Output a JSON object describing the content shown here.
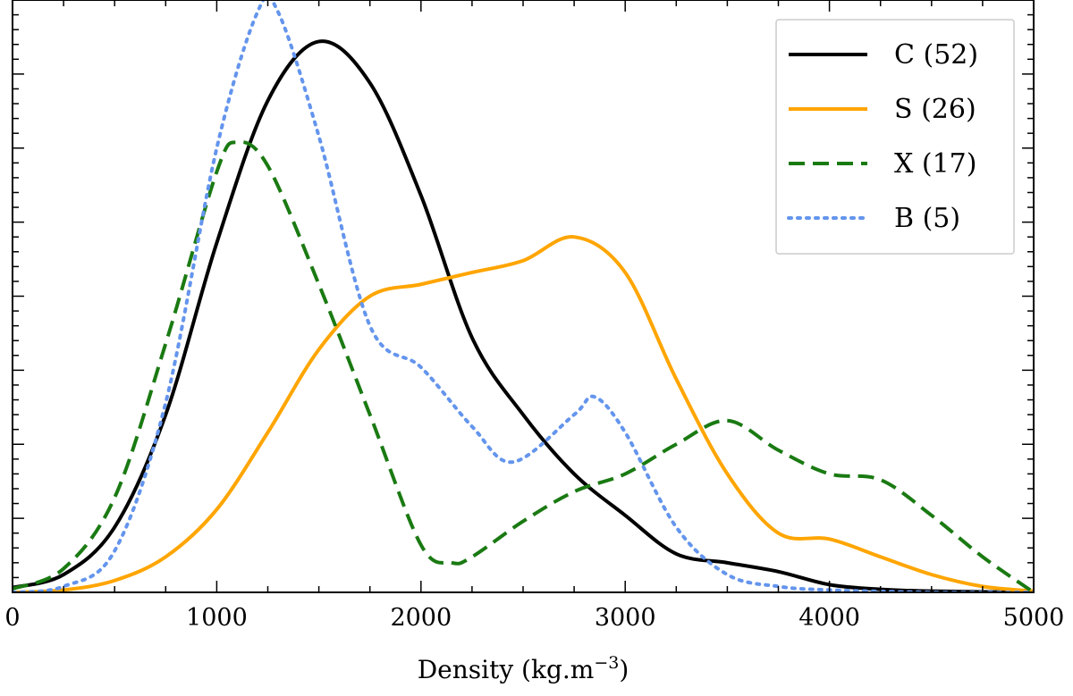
{
  "chart_data": {
    "type": "line",
    "title": "",
    "xlabel": "Density (kg.m",
    "xlabel_sup": "−3",
    "xlabel_end": ")",
    "ylabel": "",
    "xlim": [
      0,
      5000
    ],
    "ylim": [
      0,
      1
    ],
    "grid": false,
    "legend_position": "top-right",
    "x_ticks": [
      0,
      1000,
      2000,
      3000,
      4000,
      5000
    ],
    "x_tick_labels": [
      "0",
      "1000",
      "2000",
      "3000",
      "4000",
      "5000"
    ],
    "series": [
      {
        "name": "C (52)",
        "color": "#000000",
        "style": "solid",
        "points": [
          [
            0,
            0.008
          ],
          [
            250,
            0.03
          ],
          [
            500,
            0.11
          ],
          [
            750,
            0.3
          ],
          [
            1000,
            0.59
          ],
          [
            1250,
            0.83
          ],
          [
            1500,
            0.93
          ],
          [
            1750,
            0.86
          ],
          [
            2000,
            0.67
          ],
          [
            2250,
            0.43
          ],
          [
            2500,
            0.3
          ],
          [
            2750,
            0.2
          ],
          [
            3000,
            0.13
          ],
          [
            3250,
            0.065
          ],
          [
            3500,
            0.05
          ],
          [
            3750,
            0.035
          ],
          [
            4000,
            0.013
          ],
          [
            4250,
            0.005
          ],
          [
            4500,
            0.002
          ],
          [
            5000,
            0.0
          ]
        ]
      },
      {
        "name": "S (26)",
        "color": "#FFA500",
        "style": "solid",
        "points": [
          [
            0,
            0.0
          ],
          [
            250,
            0.004
          ],
          [
            500,
            0.02
          ],
          [
            750,
            0.06
          ],
          [
            1000,
            0.14
          ],
          [
            1250,
            0.27
          ],
          [
            1500,
            0.41
          ],
          [
            1750,
            0.5
          ],
          [
            2000,
            0.52
          ],
          [
            2250,
            0.54
          ],
          [
            2500,
            0.56
          ],
          [
            2750,
            0.6
          ],
          [
            3000,
            0.54
          ],
          [
            3250,
            0.36
          ],
          [
            3500,
            0.2
          ],
          [
            3750,
            0.1
          ],
          [
            4000,
            0.09
          ],
          [
            4250,
            0.06
          ],
          [
            4500,
            0.03
          ],
          [
            4750,
            0.01
          ],
          [
            5000,
            0.002
          ]
        ]
      },
      {
        "name": "X (17)",
        "color": "#1A7A12",
        "style": "dashed",
        "points": [
          [
            0,
            0.006
          ],
          [
            250,
            0.04
          ],
          [
            500,
            0.16
          ],
          [
            750,
            0.42
          ],
          [
            1000,
            0.71
          ],
          [
            1100,
            0.76
          ],
          [
            1250,
            0.72
          ],
          [
            1500,
            0.52
          ],
          [
            1750,
            0.3
          ],
          [
            2000,
            0.08
          ],
          [
            2150,
            0.05
          ],
          [
            2250,
            0.06
          ],
          [
            2500,
            0.12
          ],
          [
            2750,
            0.17
          ],
          [
            3000,
            0.2
          ],
          [
            3250,
            0.25
          ],
          [
            3500,
            0.29
          ],
          [
            3750,
            0.24
          ],
          [
            4000,
            0.2
          ],
          [
            4250,
            0.19
          ],
          [
            4500,
            0.13
          ],
          [
            4750,
            0.06
          ],
          [
            5000,
            0.0
          ]
        ]
      },
      {
        "name": "B (5)",
        "color": "#6495ED",
        "style": "dotted",
        "points": [
          [
            0,
            0.0
          ],
          [
            250,
            0.01
          ],
          [
            500,
            0.07
          ],
          [
            750,
            0.32
          ],
          [
            1000,
            0.75
          ],
          [
            1200,
            0.98
          ],
          [
            1300,
            0.98
          ],
          [
            1500,
            0.77
          ],
          [
            1750,
            0.45
          ],
          [
            2000,
            0.38
          ],
          [
            2250,
            0.28
          ],
          [
            2450,
            0.22
          ],
          [
            2750,
            0.3
          ],
          [
            2850,
            0.33
          ],
          [
            3000,
            0.27
          ],
          [
            3250,
            0.11
          ],
          [
            3500,
            0.03
          ],
          [
            3750,
            0.01
          ],
          [
            4000,
            0.004
          ],
          [
            4500,
            0.0
          ],
          [
            5000,
            0.0
          ]
        ]
      }
    ]
  }
}
